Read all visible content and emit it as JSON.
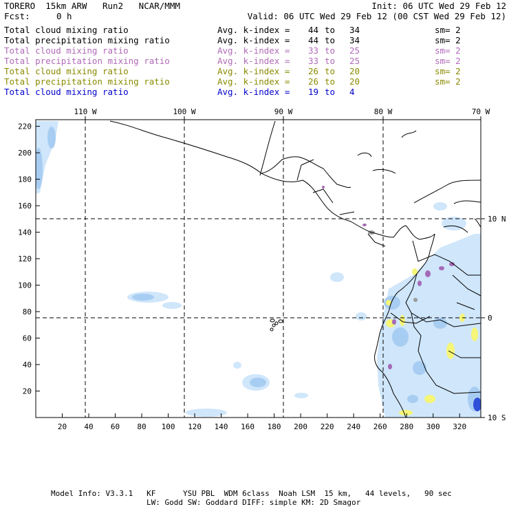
{
  "header": {
    "model": "TORERO  15km ARW   Run2   NCAR/MMM",
    "init": "Init: 06 UTC Wed 29 Feb 12",
    "fcst_label": "Fcst:",
    "fcst_value": "0 h",
    "valid": "Valid: 06 UTC Wed 29 Feb 12 (00 CST Wed 29 Feb 12)"
  },
  "legend": [
    {
      "name": "Total cloud mixing ratio",
      "kindex": "Avg. k-index =",
      "from": "44",
      "to_word": "to",
      "to": "34",
      "sm": "sm= 2",
      "color": "#000000"
    },
    {
      "name": "Total precipitation mixing ratio",
      "kindex": "Avg. k-index =",
      "from": "44",
      "to_word": "to",
      "to": "34",
      "sm": "sm= 2",
      "color": "#000000"
    },
    {
      "name": "Total cloud mixing ratio",
      "kindex": "Avg. k-index =",
      "from": "33",
      "to_word": "to",
      "to": "25",
      "sm": "sm= 2",
      "color": "#b06ab8"
    },
    {
      "name": "Total precipitation mixing ratio",
      "kindex": "Avg. k-index =",
      "from": "33",
      "to_word": "to",
      "to": "25",
      "sm": "sm= 2",
      "color": "#b06ab8"
    },
    {
      "name": "Total cloud mixing ratio",
      "kindex": "Avg. k-index =",
      "from": "26",
      "to_word": "to",
      "to": "20",
      "sm": "sm= 2",
      "color": "#8a8a00"
    },
    {
      "name": "Total precipitation mixing ratio",
      "kindex": "Avg. k-index =",
      "from": "26",
      "to_word": "to",
      "to": "20",
      "sm": "sm= 2",
      "color": "#8a8a00"
    },
    {
      "name": "Total cloud mixing ratio",
      "kindex": "Avg. k-index =",
      "from": "19",
      "to_word": "to",
      "to": "4",
      "sm": "",
      "color": "#0000cc"
    }
  ],
  "map": {
    "lon_labels": [
      "110 W",
      "100 W",
      "90 W",
      "80 W",
      "70 W"
    ],
    "lat_labels": [
      "10 N",
      "0",
      "10 S"
    ],
    "x_ticks": [
      "20",
      "40",
      "60",
      "80",
      "100",
      "120",
      "140",
      "160",
      "180",
      "200",
      "220",
      "240",
      "260",
      "280",
      "300",
      "320"
    ],
    "y_ticks": [
      "220",
      "200",
      "180",
      "160",
      "140",
      "120",
      "100",
      "80",
      "60",
      "40",
      "20"
    ],
    "colors": {
      "light_blue": "#cfe6fb",
      "mid_blue": "#a8cdf2",
      "dark_blue": "#2f4fd8",
      "yellow": "#f5f578",
      "purple": "#a56ab7",
      "gray": "#9a9a9a"
    }
  },
  "footer": {
    "line1": "Model Info: V3.3.1   KF      YSU PBL  WDM 6class  Noah LSM  15 km,   44 levels,   90 sec",
    "line2": "LW: Godd SW: Goddard DIFF: simple KM: 2D Smagor"
  }
}
